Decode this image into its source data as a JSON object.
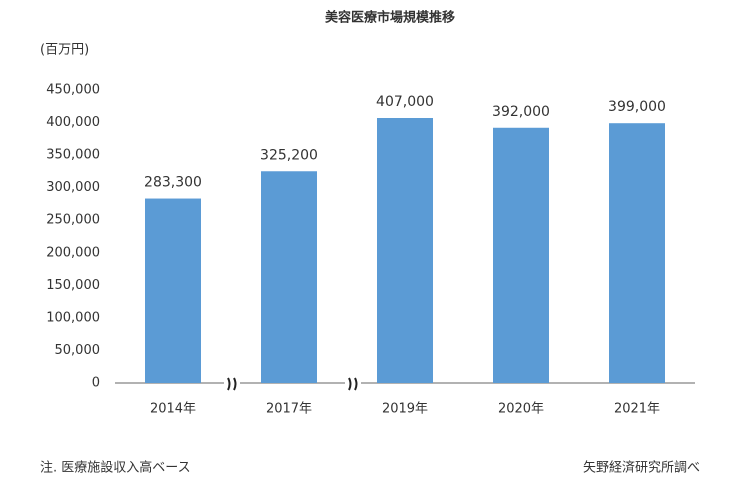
{
  "chart_data": {
    "type": "bar",
    "title": "美容医療市場規模推移",
    "y_label": "(百万円)",
    "categories": [
      "2014年",
      "2017年",
      "2019年",
      "2020年",
      "2021年"
    ],
    "values": [
      283300,
      325200,
      407000,
      392000,
      399000
    ],
    "value_labels": [
      "283,300",
      "325,200",
      "407,000",
      "392,000",
      "399,000"
    ],
    "color": "#5b9bd5",
    "ylim": [
      0,
      450000
    ],
    "yticks": [
      0,
      {
        "value": 50000,
        "label": "50,000"
      },
      {
        "value": 100000,
        "label": "100,000"
      },
      {
        "value": 150000,
        "label": "150,000"
      },
      {
        "value": 200000,
        "label": "200,000"
      },
      {
        "value": 250000,
        "label": "250,000"
      },
      {
        "value": 300000,
        "label": "300,000"
      },
      {
        "value": 350000,
        "label": "350,000"
      },
      {
        "value": 400000,
        "label": "400,000"
      },
      {
        "value": 450000,
        "label": "450,000"
      }
    ],
    "grid": false,
    "note": "注. 医療施設収入高ベース",
    "source": "矢野経済研究所調べ"
  }
}
